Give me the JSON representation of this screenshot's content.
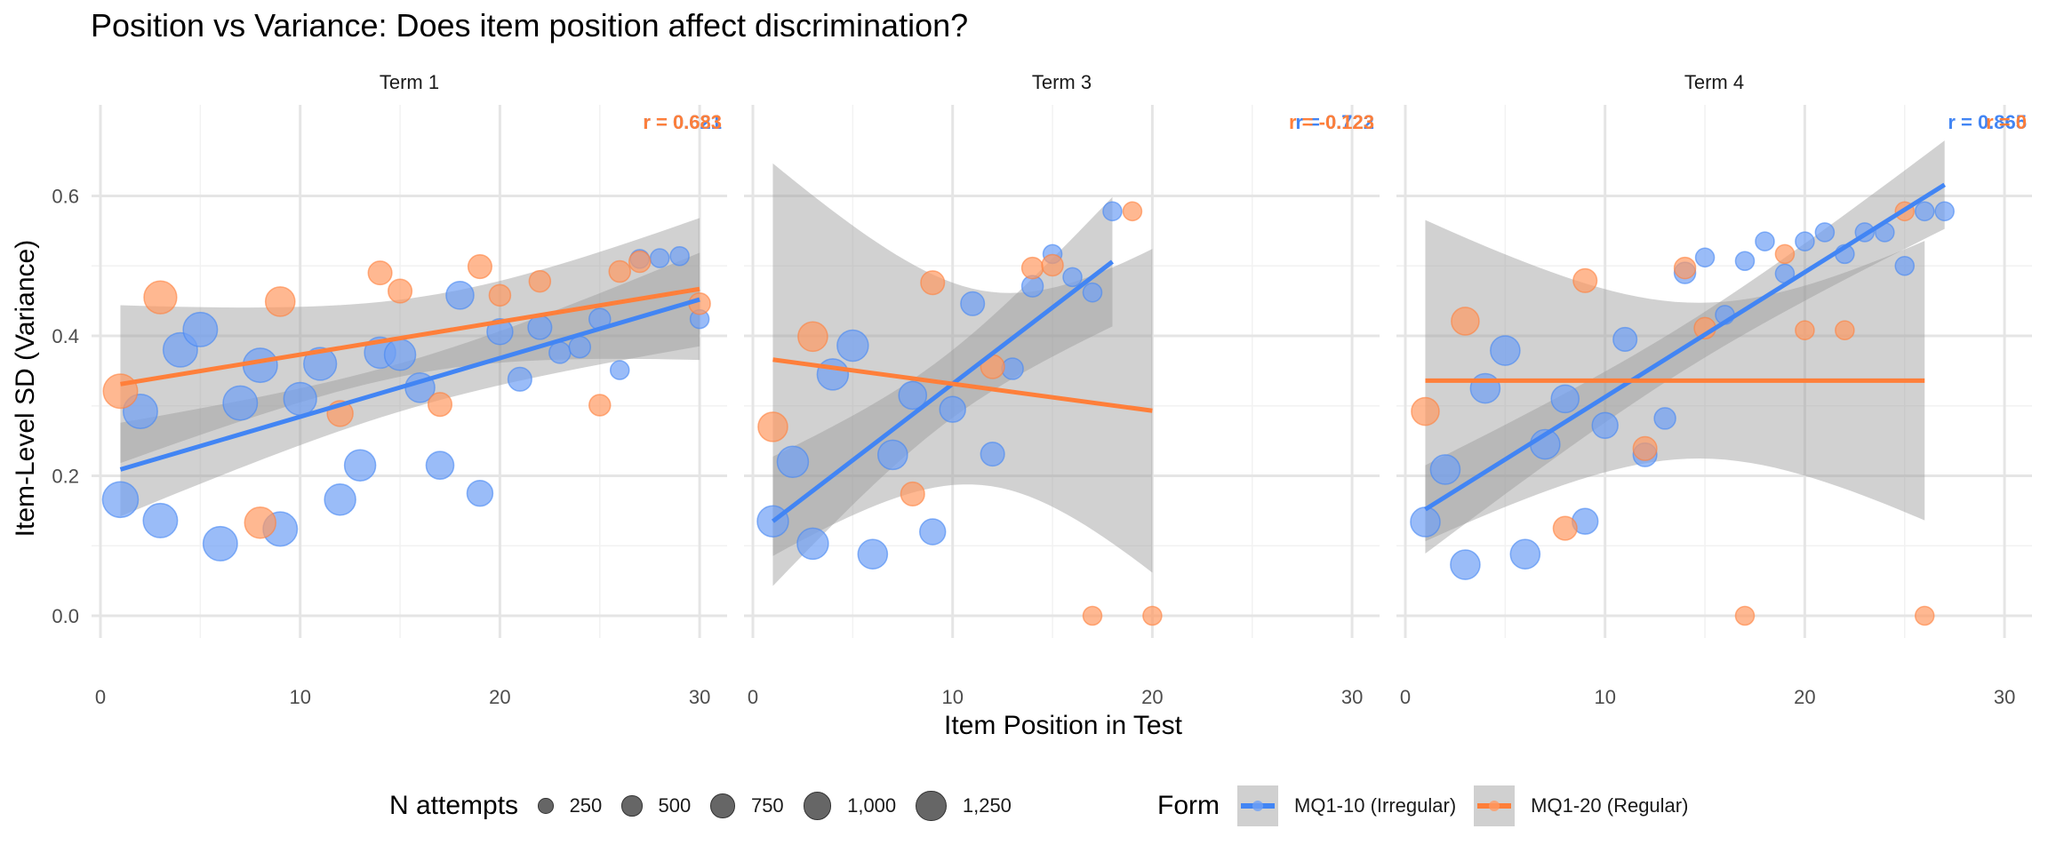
{
  "chart_data": {
    "type": "scatter",
    "title": "Position vs Variance: Does item position affect discrimination?",
    "xlabel": "Item Position in Test",
    "ylabel": "Item-Level SD (Variance)",
    "xlim": [
      0,
      31
    ],
    "ylim": [
      0,
      0.65
    ],
    "xticks": [
      0,
      10,
      20,
      30
    ],
    "yticks": [
      "0.0",
      "0.2",
      "0.4",
      "0.6"
    ],
    "grid": true,
    "colors": {
      "MQ1-10 (Irregular)": "#4285f4",
      "MQ1-20 (Regular)": "#ff7f3a"
    },
    "panels": [
      {
        "strip": "Term 1",
        "series": [
          {
            "name": "MQ1-10 (Irregular)",
            "r_label": "r = 0.621",
            "fit": [
              [
                1,
                0.209
              ],
              [
                30,
                0.452
              ]
            ],
            "points": [
              [
                1,
                0.166,
                1200
              ],
              [
                2,
                0.292,
                1100
              ],
              [
                3,
                0.136,
                1100
              ],
              [
                4,
                0.38,
                1100
              ],
              [
                5,
                0.409,
                1100
              ],
              [
                6,
                0.103,
                1100
              ],
              [
                7,
                0.304,
                1100
              ],
              [
                8,
                0.358,
                1100
              ],
              [
                9,
                0.124,
                1100
              ],
              [
                10,
                0.31,
                1000
              ],
              [
                11,
                0.36,
                1000
              ],
              [
                12,
                0.166,
                900
              ],
              [
                13,
                0.215,
                900
              ],
              [
                14,
                0.376,
                900
              ],
              [
                15,
                0.373,
                900
              ],
              [
                16,
                0.326,
                800
              ],
              [
                17,
                0.215,
                700
              ],
              [
                18,
                0.458,
                700
              ],
              [
                19,
                0.175,
                600
              ],
              [
                20,
                0.406,
                600
              ],
              [
                21,
                0.338,
                500
              ],
              [
                22,
                0.412,
                500
              ],
              [
                23,
                0.376,
                400
              ],
              [
                24,
                0.384,
                400
              ],
              [
                25,
                0.424,
                400
              ],
              [
                26,
                0.351,
                300
              ],
              [
                27,
                0.51,
                300
              ],
              [
                28,
                0.511,
                300
              ],
              [
                29,
                0.514,
                300
              ],
              [
                30,
                0.424,
                300
              ]
            ]
          },
          {
            "name": "MQ1-20 (Regular)",
            "r_label": "r = 0.683",
            "fit": [
              [
                1,
                0.331
              ],
              [
                30,
                0.467
              ]
            ],
            "points": [
              [
                1,
                0.321,
                1100
              ],
              [
                3,
                0.455,
                1000
              ],
              [
                8,
                0.133,
                900
              ],
              [
                9,
                0.449,
                800
              ],
              [
                12,
                0.289,
                600
              ],
              [
                14,
                0.49,
                500
              ],
              [
                15,
                0.464,
                500
              ],
              [
                17,
                0.302,
                500
              ],
              [
                19,
                0.499,
                500
              ],
              [
                20,
                0.458,
                400
              ],
              [
                22,
                0.478,
                400
              ],
              [
                25,
                0.301,
                400
              ],
              [
                26,
                0.492,
                400
              ],
              [
                27,
                0.506,
                400
              ],
              [
                30,
                0.446,
                400
              ]
            ]
          }
        ]
      },
      {
        "strip": "Term 3",
        "series": [
          {
            "name": "MQ1-10 (Irregular)",
            "r_label": "r = 0.722",
            "fit": [
              [
                1,
                0.135
              ],
              [
                18,
                0.506
              ]
            ],
            "points": [
              [
                1,
                0.135,
                900
              ],
              [
                2,
                0.22,
                900
              ],
              [
                3,
                0.103,
                900
              ],
              [
                4,
                0.345,
                900
              ],
              [
                5,
                0.386,
                900
              ],
              [
                6,
                0.088,
                800
              ],
              [
                7,
                0.23,
                800
              ],
              [
                8,
                0.315,
                700
              ],
              [
                9,
                0.12,
                600
              ],
              [
                10,
                0.295,
                600
              ],
              [
                11,
                0.446,
                500
              ],
              [
                12,
                0.231,
                500
              ],
              [
                13,
                0.353,
                400
              ],
              [
                14,
                0.471,
                400
              ],
              [
                15,
                0.517,
                300
              ],
              [
                16,
                0.484,
                300
              ],
              [
                17,
                0.462,
                300
              ],
              [
                18,
                0.578,
                300
              ]
            ]
          },
          {
            "name": "MQ1-20 (Regular)",
            "r_label": "r = -0.123",
            "fit": [
              [
                1,
                0.366
              ],
              [
                20,
                0.293
              ]
            ],
            "points": [
              [
                1,
                0.27,
                800
              ],
              [
                3,
                0.399,
                800
              ],
              [
                8,
                0.174,
                500
              ],
              [
                9,
                0.476,
                500
              ],
              [
                12,
                0.356,
                500
              ],
              [
                14,
                0.497,
                400
              ],
              [
                15,
                0.501,
                400
              ],
              [
                17,
                0.0,
                300
              ],
              [
                19,
                0.578,
                300
              ],
              [
                20,
                0.0,
                300
              ]
            ]
          }
        ]
      },
      {
        "strip": "Term 4",
        "series": [
          {
            "name": "MQ1-10 (Irregular)",
            "r_label": "r = 0.865",
            "fit": [
              [
                1,
                0.152
              ],
              [
                27,
                0.616
              ]
            ],
            "points": [
              [
                1,
                0.134,
                800
              ],
              [
                2,
                0.209,
                800
              ],
              [
                3,
                0.073,
                800
              ],
              [
                4,
                0.325,
                800
              ],
              [
                5,
                0.379,
                800
              ],
              [
                6,
                0.088,
                800
              ],
              [
                7,
                0.245,
                800
              ],
              [
                8,
                0.31,
                700
              ],
              [
                9,
                0.135,
                600
              ],
              [
                10,
                0.272,
                600
              ],
              [
                11,
                0.395,
                500
              ],
              [
                12,
                0.23,
                500
              ],
              [
                13,
                0.282,
                400
              ],
              [
                14,
                0.49,
                400
              ],
              [
                15,
                0.512,
                300
              ],
              [
                16,
                0.43,
                300
              ],
              [
                17,
                0.507,
                300
              ],
              [
                18,
                0.535,
                300
              ],
              [
                19,
                0.489,
                300
              ],
              [
                20,
                0.535,
                300
              ],
              [
                21,
                0.548,
                300
              ],
              [
                22,
                0.517,
                300
              ],
              [
                23,
                0.548,
                300
              ],
              [
                24,
                0.548,
                300
              ],
              [
                25,
                0.5,
                300
              ],
              [
                26,
                0.578,
                300
              ],
              [
                27,
                0.578,
                300
              ]
            ]
          },
          {
            "name": "MQ1-20 (Regular)",
            "r_label": "r = 0",
            "fit": [
              [
                1,
                0.336
              ],
              [
                26,
                0.336
              ]
            ],
            "points": [
              [
                1,
                0.292,
                700
              ],
              [
                3,
                0.421,
                700
              ],
              [
                8,
                0.125,
                500
              ],
              [
                9,
                0.479,
                500
              ],
              [
                12,
                0.239,
                500
              ],
              [
                14,
                0.497,
                400
              ],
              [
                15,
                0.411,
                400
              ],
              [
                17,
                0.0,
                300
              ],
              [
                19,
                0.517,
                300
              ],
              [
                20,
                0.408,
                300
              ],
              [
                22,
                0.408,
                300
              ],
              [
                25,
                0.578,
                300
              ],
              [
                26,
                0.0,
                300
              ]
            ]
          }
        ]
      }
    ],
    "legend": {
      "placement": "bottom",
      "size_title": "N attempts",
      "size_entries": [
        {
          "label": "250",
          "value": 250
        },
        {
          "label": "500",
          "value": 500
        },
        {
          "label": "750",
          "value": 750
        },
        {
          "label": "1,000",
          "value": 1000
        },
        {
          "label": "1,250",
          "value": 1250
        }
      ],
      "color_title": "Form",
      "color_entries": [
        "MQ1-10 (Irregular)",
        "MQ1-20 (Regular)"
      ]
    }
  }
}
